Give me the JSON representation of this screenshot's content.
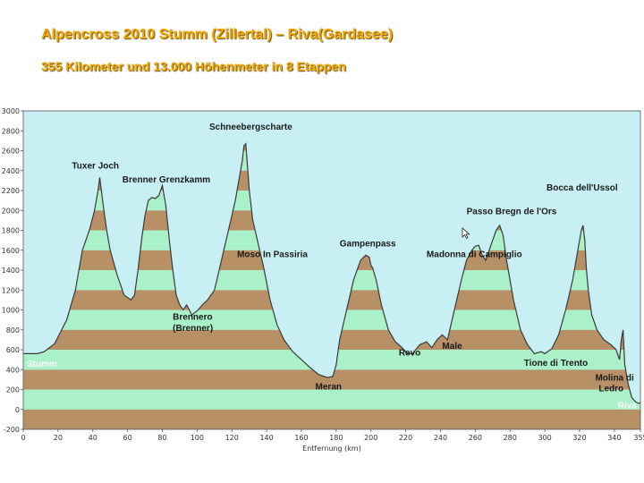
{
  "header": {
    "title": "Alpencross 2010  Stumm (Zillertal) – Riva(Gardasee)",
    "subtitle": "355 Kilometer und 13.000 Höhenmeter in 8 Etappen"
  },
  "chart_data": {
    "type": "area",
    "xlabel": "Entfernung (km)",
    "ylabel": "",
    "xlim": [
      0,
      355
    ],
    "ylim": [
      -200,
      3000
    ],
    "x_ticks": [
      0,
      20,
      40,
      60,
      80,
      100,
      120,
      140,
      160,
      180,
      200,
      220,
      240,
      260,
      280,
      300,
      320,
      340,
      355
    ],
    "y_ticks": [
      -200,
      0,
      200,
      400,
      600,
      800,
      1000,
      1200,
      1400,
      1600,
      1800,
      2000,
      2200,
      2400,
      2600,
      2800,
      3000
    ],
    "x_tick_labels": [
      "0",
      "20",
      "40",
      "60",
      "80",
      "100",
      "120",
      "140",
      "160",
      "180",
      "200",
      "220",
      "240",
      "260",
      "280",
      "300",
      "320",
      "340",
      "355"
    ],
    "y_tick_labels": [
      "-200",
      "0",
      "200",
      "400",
      "600",
      "800",
      "1000",
      "1200",
      "1400",
      "1600",
      "1800",
      "2000",
      "2200",
      "2400",
      "2600",
      "2800",
      "3000"
    ],
    "band_colors": [
      "#aaf0c8",
      "#b89066"
    ],
    "background_color": "#c8f0f4",
    "profile": {
      "x": [
        0,
        8,
        12,
        18,
        25,
        30,
        34,
        38,
        41,
        43,
        44,
        46,
        48,
        50,
        54,
        58,
        62,
        64,
        66,
        68,
        70,
        72,
        74,
        76,
        78,
        80,
        82,
        84,
        86,
        88,
        90,
        92,
        94,
        97,
        100,
        103,
        106,
        110,
        114,
        118,
        122,
        124,
        126,
        127,
        128,
        130,
        132,
        134,
        138,
        142,
        146,
        150,
        155,
        160,
        165,
        170,
        175,
        178,
        180,
        182,
        186,
        190,
        194,
        197,
        199,
        200,
        201,
        203,
        206,
        210,
        214,
        218,
        221,
        224,
        228,
        232,
        235,
        238,
        241,
        244,
        248,
        252,
        255,
        258,
        260,
        262,
        264,
        266,
        268,
        270,
        272,
        274,
        276,
        278,
        280,
        282,
        284,
        286,
        290,
        294,
        298,
        300,
        304,
        308,
        312,
        316,
        319,
        321,
        322,
        323,
        324,
        325,
        327,
        330,
        334,
        338,
        341,
        343,
        344,
        345,
        346,
        348,
        350,
        352,
        354,
        355
      ],
      "y": [
        560,
        560,
        580,
        660,
        900,
        1200,
        1600,
        1800,
        2000,
        2200,
        2330,
        2050,
        1800,
        1600,
        1350,
        1150,
        1100,
        1150,
        1400,
        1700,
        1950,
        2100,
        2130,
        2120,
        2150,
        2250,
        2050,
        1700,
        1400,
        1150,
        1050,
        1000,
        1050,
        950,
        990,
        1050,
        1100,
        1200,
        1500,
        1800,
        2100,
        2300,
        2500,
        2650,
        2670,
        2200,
        1900,
        1750,
        1450,
        1100,
        850,
        700,
        580,
        500,
        420,
        350,
        320,
        330,
        450,
        700,
        1000,
        1300,
        1500,
        1550,
        1530,
        1450,
        1420,
        1300,
        1050,
        800,
        680,
        620,
        560,
        560,
        650,
        680,
        620,
        700,
        750,
        700,
        1000,
        1300,
        1500,
        1600,
        1640,
        1650,
        1550,
        1500,
        1600,
        1700,
        1800,
        1850,
        1750,
        1500,
        1300,
        1100,
        950,
        800,
        650,
        560,
        580,
        560,
        610,
        750,
        1000,
        1300,
        1600,
        1800,
        1850,
        1700,
        1400,
        1200,
        950,
        800,
        700,
        650,
        600,
        500,
        700,
        800,
        450,
        250,
        120,
        80,
        60,
        70
      ]
    },
    "annotations": [
      {
        "text": "Tuxer Joch",
        "x": 28,
        "y": 2420
      },
      {
        "text": "Brenner Grenzkamm",
        "x": 57,
        "y": 2280
      },
      {
        "text": "Schneebergscharte",
        "x": 107,
        "y": 2810
      },
      {
        "text": "Moso In Passiria",
        "x": 123,
        "y": 1530
      },
      {
        "text": "Brennero",
        "x": 86,
        "y": 900
      },
      {
        "text": "(Brenner)",
        "x": 86,
        "y": 790
      },
      {
        "text": "Gampenpass",
        "x": 182,
        "y": 1640
      },
      {
        "text": "Meran",
        "x": 168,
        "y": 200
      },
      {
        "text": "Revo",
        "x": 216,
        "y": 540
      },
      {
        "text": "Male",
        "x": 241,
        "y": 610
      },
      {
        "text": "Madonna di Campiglio",
        "x": 232,
        "y": 1530
      },
      {
        "text": "Passo Bregn de l'Ors",
        "x": 255,
        "y": 1960
      },
      {
        "text": "Bocca dell'Ussol",
        "x": 301,
        "y": 2200
      },
      {
        "text": "Tione di Trento",
        "x": 288,
        "y": 440
      },
      {
        "text": "Molina di",
        "x": 329,
        "y": 290
      },
      {
        "text": "Ledro",
        "x": 331,
        "y": 180
      }
    ],
    "annotations_white": [
      {
        "text": "Stumm",
        "x": 2,
        "y": 430
      },
      {
        "text": "Riva",
        "x": 342,
        "y": 10
      }
    ]
  }
}
